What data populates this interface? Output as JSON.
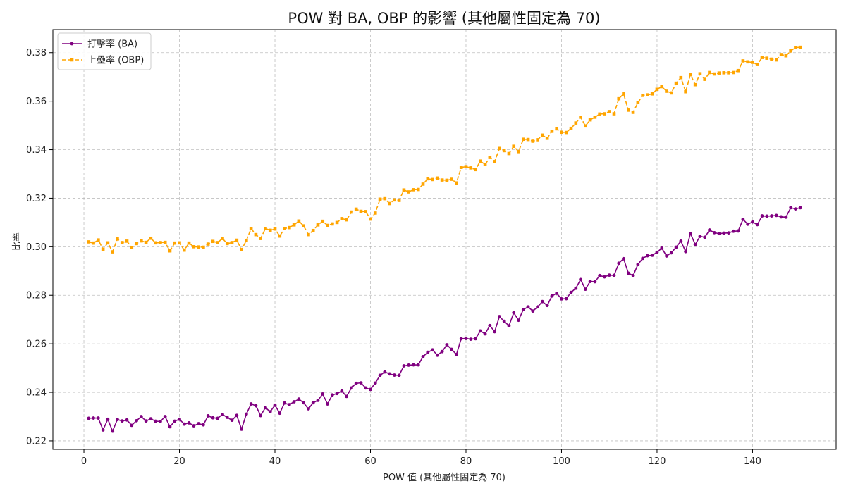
{
  "chart_data": {
    "type": "line",
    "title": "POW 對 BA, OBP 的影響 (其他屬性固定為 70)",
    "xlabel": "POW 值 (其他屬性固定為 70)",
    "ylabel": "比率",
    "xlim": [
      -6.5,
      157.5
    ],
    "ylim": [
      0.2165,
      0.3895
    ],
    "xticks": [
      0,
      20,
      40,
      60,
      80,
      100,
      120,
      140
    ],
    "yticks": [
      0.22,
      0.24,
      0.26,
      0.28,
      0.3,
      0.32,
      0.34,
      0.36,
      0.38
    ],
    "ytick_labels": [
      "0.22",
      "0.24",
      "0.26",
      "0.28",
      "0.30",
      "0.32",
      "0.34",
      "0.36",
      "0.38"
    ],
    "grid": true,
    "legend_position": "upper-left",
    "x": [
      1,
      2,
      3,
      4,
      5,
      6,
      7,
      8,
      9,
      10,
      11,
      12,
      13,
      14,
      15,
      16,
      17,
      18,
      19,
      20,
      21,
      22,
      23,
      24,
      25,
      26,
      27,
      28,
      29,
      30,
      31,
      32,
      33,
      34,
      35,
      36,
      37,
      38,
      39,
      40,
      41,
      42,
      43,
      44,
      45,
      46,
      47,
      48,
      49,
      50,
      51,
      52,
      53,
      54,
      55,
      56,
      57,
      58,
      59,
      60,
      61,
      62,
      63,
      64,
      65,
      66,
      67,
      68,
      69,
      70,
      71,
      72,
      73,
      74,
      75,
      76,
      77,
      78,
      79,
      80,
      81,
      82,
      83,
      84,
      85,
      86,
      87,
      88,
      89,
      90,
      91,
      92,
      93,
      94,
      95,
      96,
      97,
      98,
      99,
      100,
      101,
      102,
      103,
      104,
      105,
      106,
      107,
      108,
      109,
      110,
      111,
      112,
      113,
      114,
      115,
      116,
      117,
      118,
      119,
      120,
      121,
      122,
      123,
      124,
      125,
      126,
      127,
      128,
      129,
      130,
      131,
      132,
      133,
      134,
      135,
      136,
      137,
      138,
      139,
      140,
      141,
      142,
      143,
      144,
      145,
      146,
      147,
      148,
      149,
      150
    ],
    "series": [
      {
        "name": "打擊率 (BA)",
        "color": "#800080",
        "linestyle": "solid",
        "marker": "circle",
        "values": [
          0.2293,
          0.2294,
          0.2294,
          0.2245,
          0.2289,
          0.224,
          0.2288,
          0.2282,
          0.2286,
          0.2264,
          0.2283,
          0.23,
          0.2282,
          0.2291,
          0.2281,
          0.228,
          0.23,
          0.2258,
          0.2281,
          0.2289,
          0.2269,
          0.2274,
          0.2262,
          0.2271,
          0.2266,
          0.2303,
          0.2295,
          0.2293,
          0.2309,
          0.2297,
          0.2285,
          0.2305,
          0.2248,
          0.231,
          0.2352,
          0.2345,
          0.2304,
          0.2337,
          0.232,
          0.2347,
          0.2314,
          0.2356,
          0.2349,
          0.2361,
          0.2372,
          0.2357,
          0.2332,
          0.2357,
          0.2367,
          0.2393,
          0.2352,
          0.2389,
          0.2395,
          0.2405,
          0.2383,
          0.2418,
          0.2437,
          0.2439,
          0.2418,
          0.2412,
          0.2438,
          0.247,
          0.2484,
          0.2476,
          0.2471,
          0.247,
          0.2509,
          0.2512,
          0.2513,
          0.2513,
          0.2547,
          0.2565,
          0.2575,
          0.2553,
          0.2568,
          0.2596,
          0.2577,
          0.2556,
          0.2621,
          0.2622,
          0.2619,
          0.2621,
          0.2653,
          0.2641,
          0.2675,
          0.265,
          0.2712,
          0.2693,
          0.2674,
          0.2728,
          0.2697,
          0.2741,
          0.2752,
          0.2735,
          0.2752,
          0.2774,
          0.2758,
          0.2797,
          0.2808,
          0.2785,
          0.2786,
          0.2812,
          0.2829,
          0.2865,
          0.2825,
          0.2857,
          0.2856,
          0.2881,
          0.2876,
          0.2883,
          0.2882,
          0.2932,
          0.2951,
          0.2891,
          0.2881,
          0.2927,
          0.2952,
          0.2963,
          0.2965,
          0.2977,
          0.2994,
          0.2962,
          0.2975,
          0.2998,
          0.3023,
          0.298,
          0.3055,
          0.3009,
          0.3043,
          0.3039,
          0.3069,
          0.3058,
          0.3054,
          0.3056,
          0.3057,
          0.3064,
          0.3065,
          0.3113,
          0.3093,
          0.3102,
          0.3091,
          0.3127,
          0.3126,
          0.3127,
          0.3129,
          0.3123,
          0.3122,
          0.3161,
          0.3156,
          0.3161
        ]
      },
      {
        "name": "上壘率 (OBP)",
        "color": "#ffa500",
        "linestyle": "dashed",
        "marker": "square",
        "values": [
          0.302,
          0.3015,
          0.3028,
          0.299,
          0.3016,
          0.2979,
          0.3032,
          0.3017,
          0.3023,
          0.2996,
          0.3013,
          0.3024,
          0.3018,
          0.3035,
          0.3016,
          0.3017,
          0.3018,
          0.2983,
          0.3015,
          0.3016,
          0.2986,
          0.3015,
          0.3,
          0.2999,
          0.2998,
          0.3011,
          0.3022,
          0.3017,
          0.3034,
          0.3013,
          0.3017,
          0.3027,
          0.2988,
          0.3025,
          0.3075,
          0.305,
          0.3034,
          0.3075,
          0.3068,
          0.3073,
          0.3044,
          0.3075,
          0.3079,
          0.309,
          0.3106,
          0.3086,
          0.305,
          0.3067,
          0.309,
          0.3105,
          0.3088,
          0.3094,
          0.31,
          0.3116,
          0.3111,
          0.3143,
          0.3155,
          0.3146,
          0.3145,
          0.3114,
          0.3139,
          0.3196,
          0.3198,
          0.3178,
          0.3193,
          0.3191,
          0.3234,
          0.3226,
          0.3235,
          0.3236,
          0.3258,
          0.328,
          0.3277,
          0.3283,
          0.3275,
          0.3274,
          0.3278,
          0.3263,
          0.3327,
          0.333,
          0.3325,
          0.3318,
          0.3353,
          0.3339,
          0.3368,
          0.3351,
          0.3405,
          0.3396,
          0.3384,
          0.3414,
          0.3392,
          0.3443,
          0.3442,
          0.3435,
          0.3441,
          0.346,
          0.3447,
          0.3476,
          0.3486,
          0.3472,
          0.3471,
          0.3488,
          0.351,
          0.3534,
          0.3498,
          0.3523,
          0.3534,
          0.3547,
          0.3548,
          0.3557,
          0.3548,
          0.361,
          0.363,
          0.3563,
          0.3554,
          0.3594,
          0.3624,
          0.3626,
          0.363,
          0.3649,
          0.366,
          0.3641,
          0.3634,
          0.3674,
          0.3697,
          0.3639,
          0.371,
          0.3668,
          0.3713,
          0.369,
          0.3718,
          0.3712,
          0.3716,
          0.3717,
          0.3717,
          0.3718,
          0.3726,
          0.3766,
          0.3762,
          0.376,
          0.3751,
          0.378,
          0.3777,
          0.3773,
          0.377,
          0.3792,
          0.3787,
          0.3807,
          0.3821,
          0.3822
        ]
      }
    ]
  }
}
